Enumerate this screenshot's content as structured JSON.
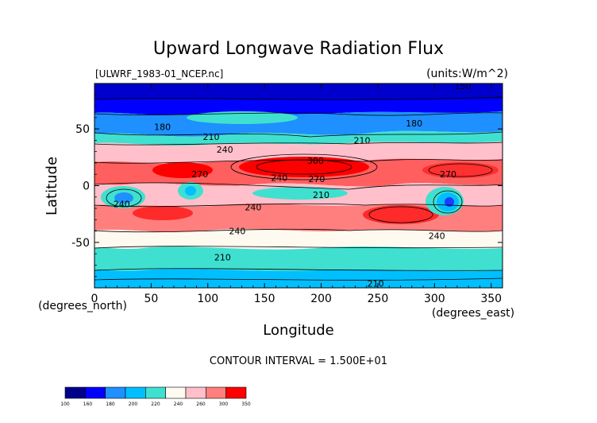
{
  "chart_data": {
    "type": "heatmap",
    "title": "Upward Longwave Radiation Flux",
    "source_file": "[ULWRF_1983-01_NCEP.nc]",
    "units": "(units:W/m^2)",
    "xlabel": "Longitude",
    "ylabel": "Latitude",
    "x_unit_label": "(degrees_east)",
    "y_unit_label": "(degrees_north)",
    "xlim": [
      0,
      360
    ],
    "ylim": [
      -90,
      90
    ],
    "x_ticks": [
      0,
      50,
      100,
      150,
      200,
      250,
      300,
      350
    ],
    "y_ticks": [
      50,
      0,
      -50
    ],
    "contour_interval_text": "CONTOUR INTERVAL = 1.500E+01",
    "colorbar": {
      "levels": [
        100,
        160,
        180,
        200,
        220,
        240,
        260,
        300,
        350
      ],
      "colors": [
        "#00008b",
        "#0000ff",
        "#1e90ff",
        "#00bfff",
        "#40e0d0",
        "#fffaf0",
        "#ffc0cb",
        "#ff7f7f",
        "#ff0000"
      ]
    },
    "contour_labels": [
      {
        "text": "150",
        "x": 325,
        "y": 88
      },
      {
        "text": "180",
        "x": 60,
        "y": 52
      },
      {
        "text": "180",
        "x": 282,
        "y": 55
      },
      {
        "text": "210",
        "x": 103,
        "y": 43
      },
      {
        "text": "210",
        "x": 236,
        "y": 40
      },
      {
        "text": "240",
        "x": 115,
        "y": 32
      },
      {
        "text": "300",
        "x": 195,
        "y": 22
      },
      {
        "text": "270",
        "x": 93,
        "y": 10
      },
      {
        "text": "240",
        "x": 163,
        "y": 7
      },
      {
        "text": "270",
        "x": 196,
        "y": 6
      },
      {
        "text": "210",
        "x": 200,
        "y": -8
      },
      {
        "text": "270",
        "x": 312,
        "y": 10
      },
      {
        "text": "240",
        "x": 24,
        "y": -16
      },
      {
        "text": "240",
        "x": 140,
        "y": -19
      },
      {
        "text": "240",
        "x": 126,
        "y": -40
      },
      {
        "text": "240",
        "x": 302,
        "y": -44
      },
      {
        "text": "210",
        "x": 113,
        "y": -63
      },
      {
        "text": "210",
        "x": 248,
        "y": -86
      }
    ]
  }
}
